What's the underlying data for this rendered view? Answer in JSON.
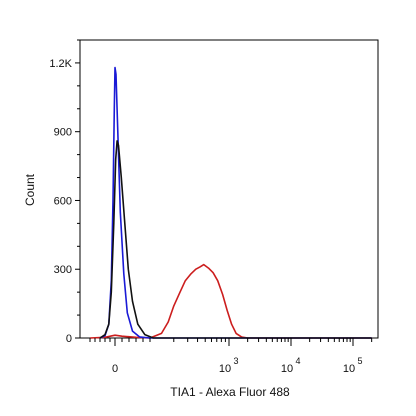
{
  "chart_data": {
    "type": "line",
    "title": "",
    "xlabel": "TIA1 - Alexa Fluor 488",
    "ylabel": "Count",
    "x_scale": "biexponential",
    "xlim": [
      -100,
      200000
    ],
    "ylim": [
      0,
      1300
    ],
    "y_ticks": [
      {
        "value": 0,
        "label": "0"
      },
      {
        "value": 300,
        "label": "300"
      },
      {
        "value": 600,
        "label": "600"
      },
      {
        "value": 900,
        "label": "900"
      },
      {
        "value": 1200,
        "label": "1.2K"
      }
    ],
    "x_ticks": [
      {
        "value": 0,
        "label": "0",
        "exp": ""
      },
      {
        "value": 1000,
        "label": "10",
        "exp": "3"
      },
      {
        "value": 10000,
        "label": "10",
        "exp": "4"
      },
      {
        "value": 100000,
        "label": "10",
        "exp": "5"
      }
    ],
    "grid": false,
    "legend": "none",
    "series": [
      {
        "color": "#1a1ad6",
        "points": [
          [
            -60,
            0
          ],
          [
            -40,
            10
          ],
          [
            -25,
            60
          ],
          [
            -15,
            250
          ],
          [
            -8,
            600
          ],
          [
            -3,
            1000
          ],
          [
            0,
            1180
          ],
          [
            3,
            1150
          ],
          [
            8,
            900
          ],
          [
            15,
            550
          ],
          [
            25,
            280
          ],
          [
            35,
            110
          ],
          [
            50,
            30
          ],
          [
            70,
            5
          ],
          [
            100,
            0
          ],
          [
            200000,
            0
          ]
        ]
      },
      {
        "color": "#111111",
        "points": [
          [
            -60,
            0
          ],
          [
            -40,
            15
          ],
          [
            -25,
            60
          ],
          [
            -15,
            200
          ],
          [
            -5,
            500
          ],
          [
            2,
            780
          ],
          [
            6,
            860
          ],
          [
            10,
            840
          ],
          [
            18,
            700
          ],
          [
            28,
            500
          ],
          [
            38,
            300
          ],
          [
            50,
            160
          ],
          [
            65,
            60
          ],
          [
            85,
            15
          ],
          [
            110,
            0
          ],
          [
            200000,
            0
          ]
        ]
      },
      {
        "color": "#cc1e1e",
        "points": [
          [
            -100,
            0
          ],
          [
            -40,
            3
          ],
          [
            0,
            12
          ],
          [
            20,
            8
          ],
          [
            60,
            3
          ],
          [
            100,
            0
          ],
          [
            140,
            20
          ],
          [
            170,
            70
          ],
          [
            200,
            140
          ],
          [
            240,
            200
          ],
          [
            280,
            250
          ],
          [
            330,
            280
          ],
          [
            380,
            300
          ],
          [
            430,
            310
          ],
          [
            480,
            320
          ],
          [
            550,
            305
          ],
          [
            630,
            285
          ],
          [
            720,
            250
          ],
          [
            830,
            190
          ],
          [
            950,
            120
          ],
          [
            1100,
            60
          ],
          [
            1300,
            20
          ],
          [
            1600,
            4
          ],
          [
            2000,
            0
          ],
          [
            200000,
            0
          ]
        ]
      }
    ]
  }
}
